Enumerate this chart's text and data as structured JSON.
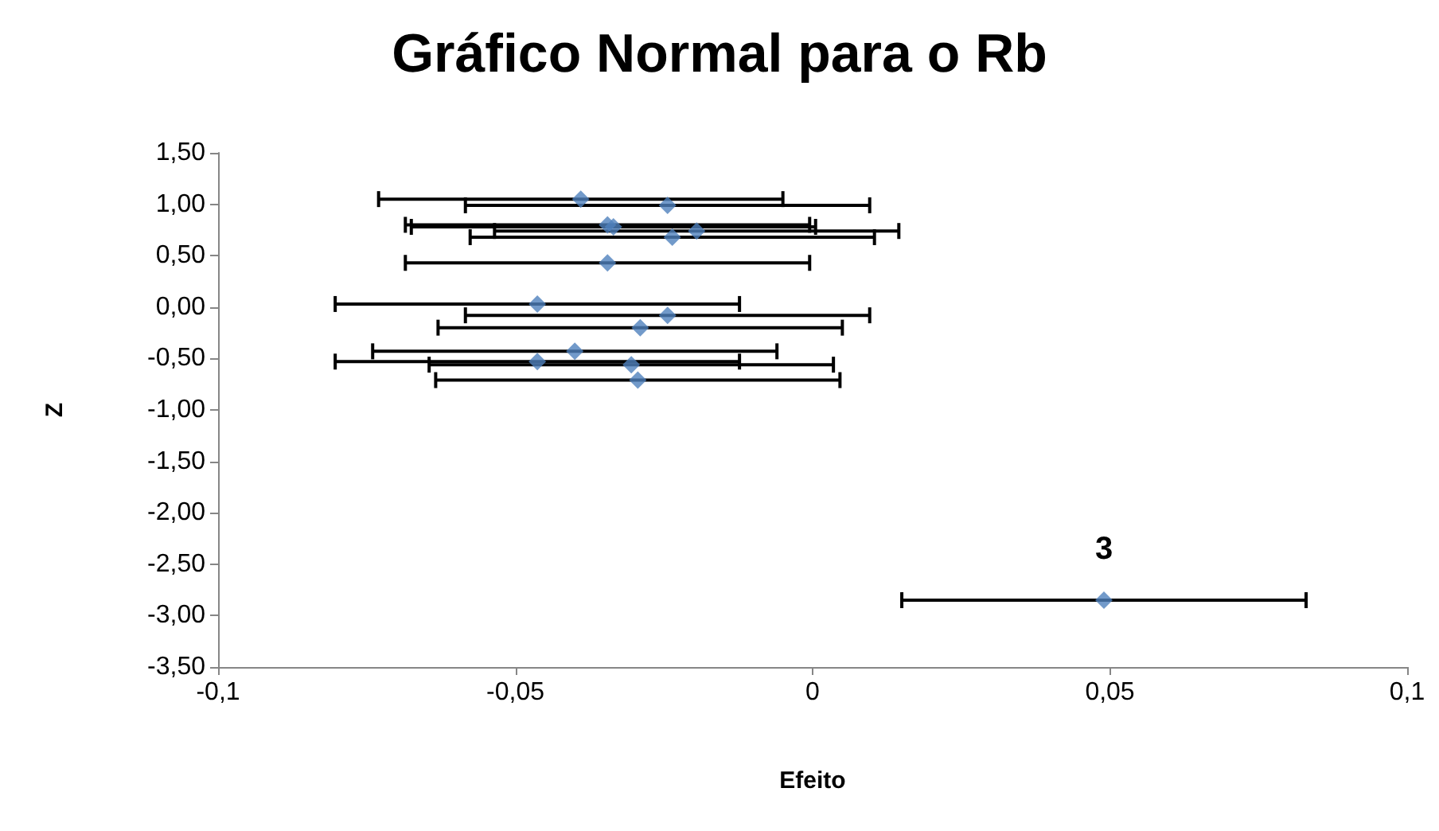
{
  "chart_data": {
    "type": "scatter",
    "title": "Gráfico Normal para o Rb",
    "xlabel": "Efeito",
    "ylabel": "Z",
    "x": [
      -0.039,
      -0.0244,
      -0.0345,
      -0.0335,
      -0.0195,
      -0.0236,
      -0.0345,
      -0.0463,
      -0.0244,
      -0.029,
      -0.04,
      -0.0463,
      -0.0305,
      -0.0294,
      0.049
    ],
    "series": [
      {
        "color": "#4f81bd",
        "values": [
          1.05,
          0.99,
          0.8,
          0.78,
          0.74,
          0.68,
          0.43,
          0.03,
          -0.08,
          -0.2,
          -0.43,
          -0.53,
          -0.56,
          -0.71,
          -2.85
        ],
        "xerrors": [
          0.034,
          0.034,
          0.034,
          0.034,
          0.034,
          0.034,
          0.034,
          0.034,
          0.034,
          0.034,
          0.034,
          0.034,
          0.034,
          0.034,
          0.034
        ]
      }
    ],
    "xlim": [
      -0.1,
      0.1
    ],
    "xticks": [
      {
        "value": -0.1,
        "label": "-0,1"
      },
      {
        "value": -0.05,
        "label": "-0,05"
      },
      {
        "value": 0,
        "label": "0"
      },
      {
        "value": 0.05,
        "label": "0,05"
      },
      {
        "value": 0.1,
        "label": "0,1"
      }
    ],
    "ylim": [
      -3.5,
      1.5
    ],
    "yticks": [
      {
        "value": -3.5,
        "label": "-3,50"
      },
      {
        "value": -3,
        "label": "-3,00"
      },
      {
        "value": -2.5,
        "label": "-2,50"
      },
      {
        "value": -2,
        "label": "-2,00"
      },
      {
        "value": -1.5,
        "label": "-1,50"
      },
      {
        "value": -1,
        "label": "-1,00"
      },
      {
        "value": -0.5,
        "label": "-0,50"
      },
      {
        "value": 0,
        "label": "0,00"
      },
      {
        "value": 0.5,
        "label": "0,50"
      },
      {
        "value": 1,
        "label": "1,00"
      },
      {
        "value": 1.5,
        "label": "1,50"
      }
    ],
    "annotations": [
      {
        "text": "3",
        "x": 0.049,
        "y": -2.85
      }
    ],
    "marker": "diamond",
    "grid": false
  }
}
